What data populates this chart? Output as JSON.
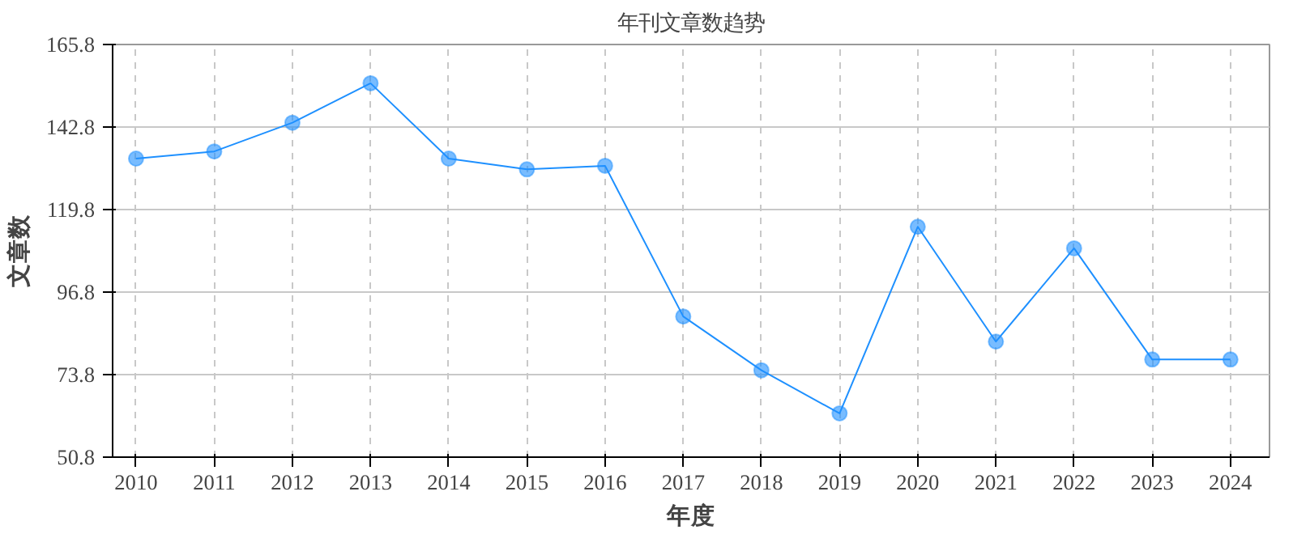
{
  "chart_data": {
    "type": "line",
    "title": "年刊文章数趋势",
    "xlabel": "年度",
    "ylabel": "文章数",
    "x": [
      2010,
      2011,
      2012,
      2013,
      2014,
      2015,
      2016,
      2017,
      2018,
      2019,
      2020,
      2021,
      2022,
      2023,
      2024
    ],
    "series": [
      {
        "color": "#1e90ff",
        "values": [
          134,
          136,
          144,
          155,
          134,
          131,
          132,
          90,
          75,
          63,
          115,
          83,
          109,
          78,
          78
        ]
      }
    ],
    "xlim": [
      2009.7,
      2024.5
    ],
    "xticks": [
      2010,
      2011,
      2012,
      2013,
      2014,
      2015,
      2016,
      2017,
      2018,
      2019,
      2020,
      2021,
      2022,
      2023,
      2024
    ],
    "ylim": [
      50.8,
      165.8
    ],
    "yticks": [
      50.8,
      73.8,
      96.8,
      119.8,
      142.8,
      165.8
    ],
    "grid": true,
    "marker": "circle",
    "line_style": "solid"
  }
}
